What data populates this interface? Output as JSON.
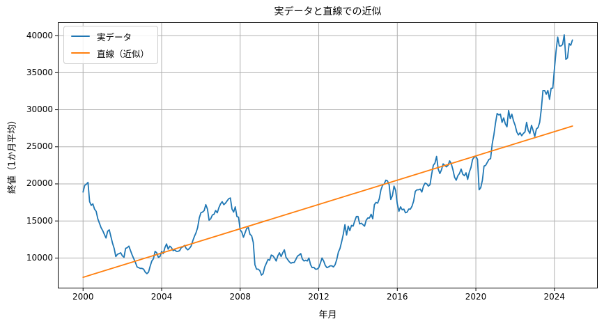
{
  "chart_data": {
    "type": "line",
    "title": "実データと直線での近似",
    "xlabel": "年月",
    "ylabel": "終値（1か月平均）",
    "xlim": [
      1998.75,
      2026.17
    ],
    "ylim": [
      6000,
      41700
    ],
    "x_ticks": [
      2000,
      2004,
      2008,
      2012,
      2016,
      2020,
      2024
    ],
    "y_ticks": [
      10000,
      15000,
      20000,
      25000,
      30000,
      35000,
      40000
    ],
    "grid": true,
    "grid_color": "#b0b0b0",
    "spine_color": "#000000",
    "legend_position": "upper-left",
    "series": [
      {
        "name": "実データ",
        "color": "#1f77b4",
        "type": "monthly-line",
        "x_start": 2000.0,
        "x_step": 0.0833333,
        "values": [
          18900,
          19800,
          19950,
          20200,
          17600,
          17100,
          17300,
          16600,
          16300,
          15300,
          14700,
          14100,
          13700,
          13200,
          12700,
          13600,
          13800,
          12900,
          12000,
          11300,
          10200,
          10500,
          10600,
          10700,
          10300,
          10100,
          11300,
          11400,
          11600,
          11000,
          10400,
          9900,
          9400,
          8800,
          8700,
          8600,
          8600,
          8500,
          8100,
          7900,
          8100,
          8900,
          9600,
          9900,
          10900,
          10700,
          10100,
          10200,
          10900,
          10600,
          11400,
          11900,
          11200,
          11600,
          11400,
          11000,
          11100,
          10900,
          10900,
          11000,
          11400,
          11500,
          11700,
          11300,
          11100,
          11300,
          11600,
          12300,
          12900,
          13400,
          14100,
          15400,
          16100,
          16200,
          16400,
          17200,
          16600,
          15100,
          15300,
          15800,
          15900,
          16400,
          16100,
          16800,
          17300,
          17600,
          17200,
          17400,
          17700,
          18000,
          18100,
          16600,
          16200,
          16900,
          15600,
          15500,
          13800,
          13500,
          12800,
          13400,
          14000,
          14100,
          13200,
          13000,
          12100,
          9100,
          8500,
          8500,
          8300,
          7700,
          7900,
          8800,
          9300,
          9800,
          9700,
          10400,
          10300,
          10000,
          9600,
          10300,
          10700,
          10200,
          10700,
          11100,
          10100,
          9800,
          9500,
          9300,
          9400,
          9400,
          9800,
          10250,
          10400,
          10600,
          9850,
          9600,
          9700,
          9600,
          10000,
          9100,
          8700,
          8750,
          8500,
          8500,
          8700,
          9300,
          10000,
          9600,
          9000,
          8700,
          8800,
          8950,
          8950,
          8800,
          9100,
          9800,
          10800,
          11300,
          12200,
          13200,
          14500,
          13100,
          14300,
          13700,
          14400,
          14300,
          15000,
          15600,
          15600,
          14600,
          14700,
          14500,
          14300,
          15100,
          15400,
          15400,
          15900,
          15300,
          17200,
          17500,
          17400,
          18000,
          19200,
          19800,
          20000,
          20500,
          20400,
          19900,
          17900,
          18400,
          19700,
          19100,
          17300,
          16300,
          16900,
          16500,
          16600,
          16100,
          16200,
          16600,
          16600,
          17000,
          17700,
          19000,
          19200,
          19200,
          19300,
          18900,
          19700,
          20100,
          20000,
          19700,
          19900,
          21300,
          22500,
          22800,
          23700,
          22000,
          21400,
          21900,
          22700,
          22500,
          22300,
          22500,
          23100,
          22700,
          21900,
          20900,
          20500,
          21100,
          21400,
          22000,
          21300,
          21100,
          21500,
          20600,
          21600,
          22200,
          23300,
          23600,
          23700,
          23300,
          19200,
          19500,
          20500,
          22400,
          22500,
          22900,
          23300,
          23400,
          25400,
          26600,
          28200,
          29500,
          29300,
          29400,
          28300,
          28900,
          28100,
          27700,
          29900,
          28800,
          29400,
          28500,
          27900,
          27000,
          26600,
          26900,
          26500,
          26800,
          27000,
          28300,
          27200,
          26800,
          27900,
          27200,
          26400,
          27400,
          27600,
          28300,
          30100,
          32600,
          32600,
          32100,
          32600,
          31400,
          32900,
          32900,
          35500,
          37900,
          39800,
          38600,
          38600,
          38800,
          40100,
          36800,
          37000,
          38900,
          38700,
          39400
        ]
      },
      {
        "name": "直線（近似）",
        "color": "#ff7f0e",
        "type": "trend",
        "x1": 2000.0,
        "y1": 7400,
        "x2": 2024.917,
        "y2": 27800
      }
    ]
  }
}
